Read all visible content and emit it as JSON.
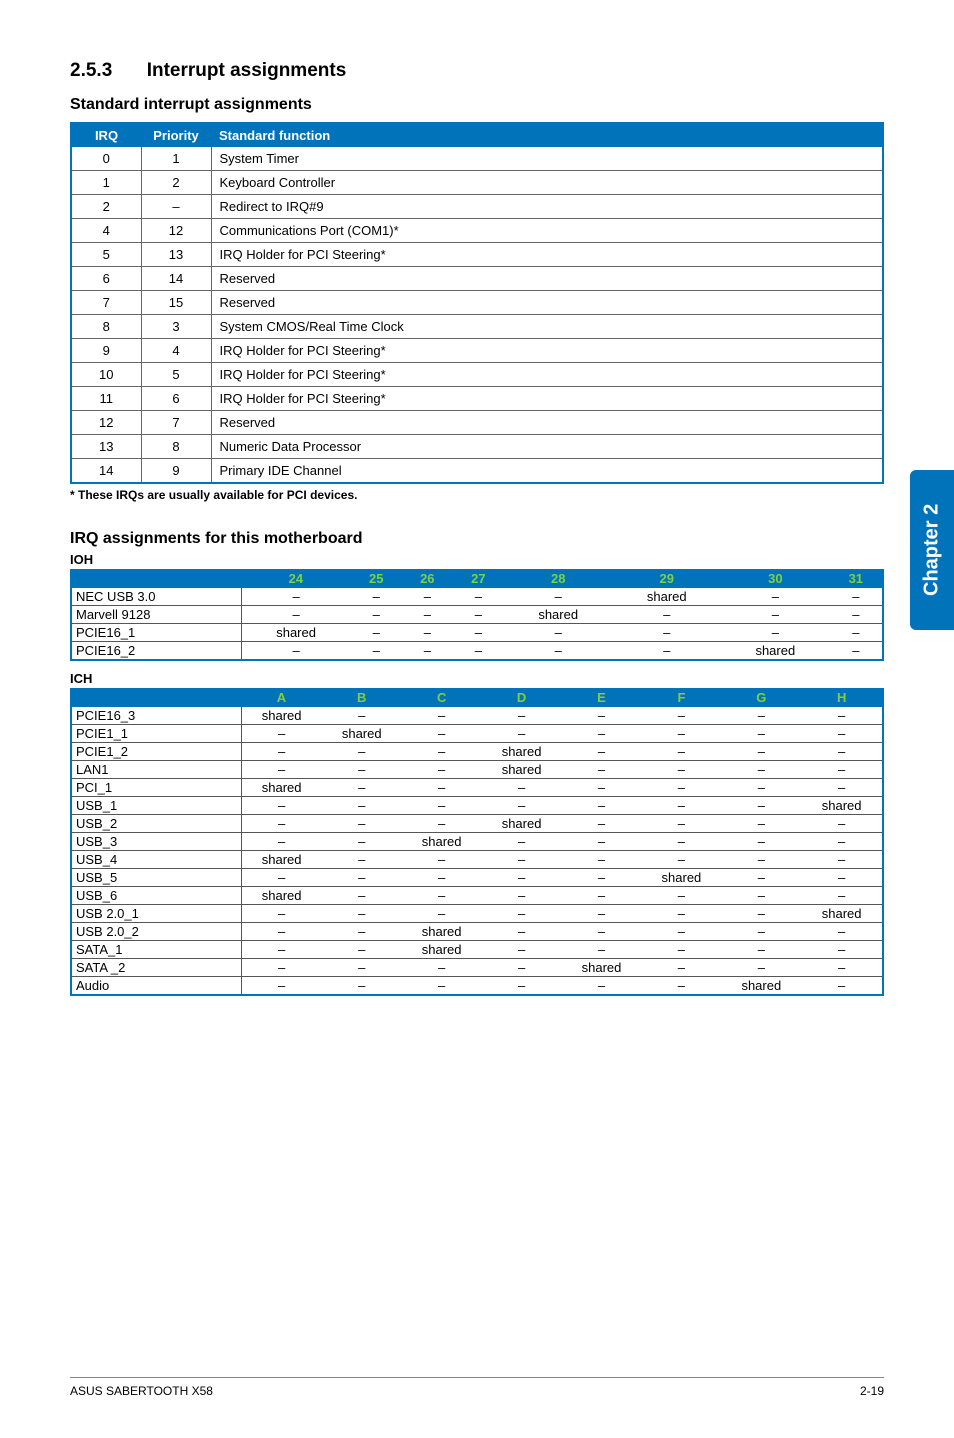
{
  "colors": {
    "header_bg": "#0073bb",
    "header_text": "#ffffff",
    "accent_text": "#7fd03f",
    "border": "#555555",
    "page_bg": "#ffffff"
  },
  "section": {
    "num": "2.5.3",
    "title": "Interrupt assignments"
  },
  "std_heading": "Standard interrupt assignments",
  "std_table": {
    "columns": [
      "IRQ",
      "Priority",
      "Standard function"
    ],
    "rows": [
      [
        "0",
        "1",
        "System Timer"
      ],
      [
        "1",
        "2",
        "Keyboard Controller"
      ],
      [
        "2",
        "–",
        "Redirect to IRQ#9"
      ],
      [
        "4",
        "12",
        "Communications Port (COM1)*"
      ],
      [
        "5",
        "13",
        "IRQ Holder for PCI Steering*"
      ],
      [
        "6",
        "14",
        "Reserved"
      ],
      [
        "7",
        "15",
        "Reserved"
      ],
      [
        "8",
        "3",
        "System CMOS/Real Time Clock"
      ],
      [
        "9",
        "4",
        "IRQ Holder for PCI Steering*"
      ],
      [
        "10",
        "5",
        "IRQ Holder for PCI Steering*"
      ],
      [
        "11",
        "6",
        "IRQ Holder for PCI Steering*"
      ],
      [
        "12",
        "7",
        "Reserved"
      ],
      [
        "13",
        "8",
        "Numeric Data Processor"
      ],
      [
        "14",
        "9",
        "Primary IDE Channel"
      ]
    ]
  },
  "footnote": "* These IRQs are usually available for PCI devices.",
  "irq_mb_heading": "IRQ assignments for this motherboard",
  "ioh": {
    "label": "IOH",
    "columns": [
      "",
      "24",
      "25",
      "26",
      "27",
      "28",
      "29",
      "30",
      "31"
    ],
    "rows": [
      [
        "NEC USB 3.0",
        "–",
        "–",
        "–",
        "–",
        "–",
        "shared",
        "–",
        "–"
      ],
      [
        "Marvell 9128",
        "–",
        "–",
        "–",
        "–",
        "shared",
        "–",
        "–",
        "–"
      ],
      [
        "PCIE16_1",
        "shared",
        "–",
        "–",
        "–",
        "–",
        "–",
        "–",
        "–"
      ],
      [
        "PCIE16_2",
        "–",
        "–",
        "–",
        "–",
        "–",
        "–",
        "shared",
        "–"
      ]
    ]
  },
  "ich": {
    "label": "ICH",
    "columns": [
      "",
      "A",
      "B",
      "C",
      "D",
      "E",
      "F",
      "G",
      "H"
    ],
    "rows": [
      [
        "PCIE16_3",
        "shared",
        "–",
        "–",
        "–",
        "–",
        "–",
        "–",
        "–"
      ],
      [
        "PCIE1_1",
        "–",
        "shared",
        "–",
        "–",
        "–",
        "–",
        "–",
        "–"
      ],
      [
        "PCIE1_2",
        "–",
        "–",
        "–",
        "shared",
        "–",
        "–",
        "–",
        "–"
      ],
      [
        "LAN1",
        "–",
        "–",
        "–",
        "shared",
        "–",
        "–",
        "–",
        "–"
      ],
      [
        "PCI_1",
        "shared",
        "–",
        "–",
        "–",
        "–",
        "–",
        "–",
        "–"
      ],
      [
        "USB_1",
        "–",
        "–",
        "–",
        "–",
        "–",
        "–",
        "–",
        "shared"
      ],
      [
        "USB_2",
        "–",
        "–",
        "–",
        "shared",
        "–",
        "–",
        "–",
        "–"
      ],
      [
        "USB_3",
        "–",
        "–",
        "shared",
        "–",
        "–",
        "–",
        "–",
        "–"
      ],
      [
        "USB_4",
        "shared",
        "–",
        "–",
        "–",
        "–",
        "–",
        "–",
        "–"
      ],
      [
        "USB_5",
        "–",
        "–",
        "–",
        "–",
        "–",
        "shared",
        "–",
        "–"
      ],
      [
        "USB_6",
        "shared",
        "–",
        "–",
        "–",
        "–",
        "–",
        "–",
        "–"
      ],
      [
        "USB 2.0_1",
        "–",
        "–",
        "–",
        "–",
        "–",
        "–",
        "–",
        "shared"
      ],
      [
        "USB 2.0_2",
        "–",
        "–",
        "shared",
        "–",
        "–",
        "–",
        "–",
        "–"
      ],
      [
        "SATA_1",
        "–",
        "–",
        "shared",
        "–",
        "–",
        "–",
        "–",
        "–"
      ],
      [
        "SATA _2",
        "–",
        "–",
        "–",
        "–",
        "shared",
        "–",
        "–",
        "–"
      ],
      [
        "Audio",
        "–",
        "–",
        "–",
        "–",
        "–",
        "–",
        "shared",
        "–"
      ]
    ]
  },
  "side_tab": "Chapter 2",
  "footer": {
    "left": "ASUS SABERTOOTH X58",
    "right": "2-19"
  }
}
